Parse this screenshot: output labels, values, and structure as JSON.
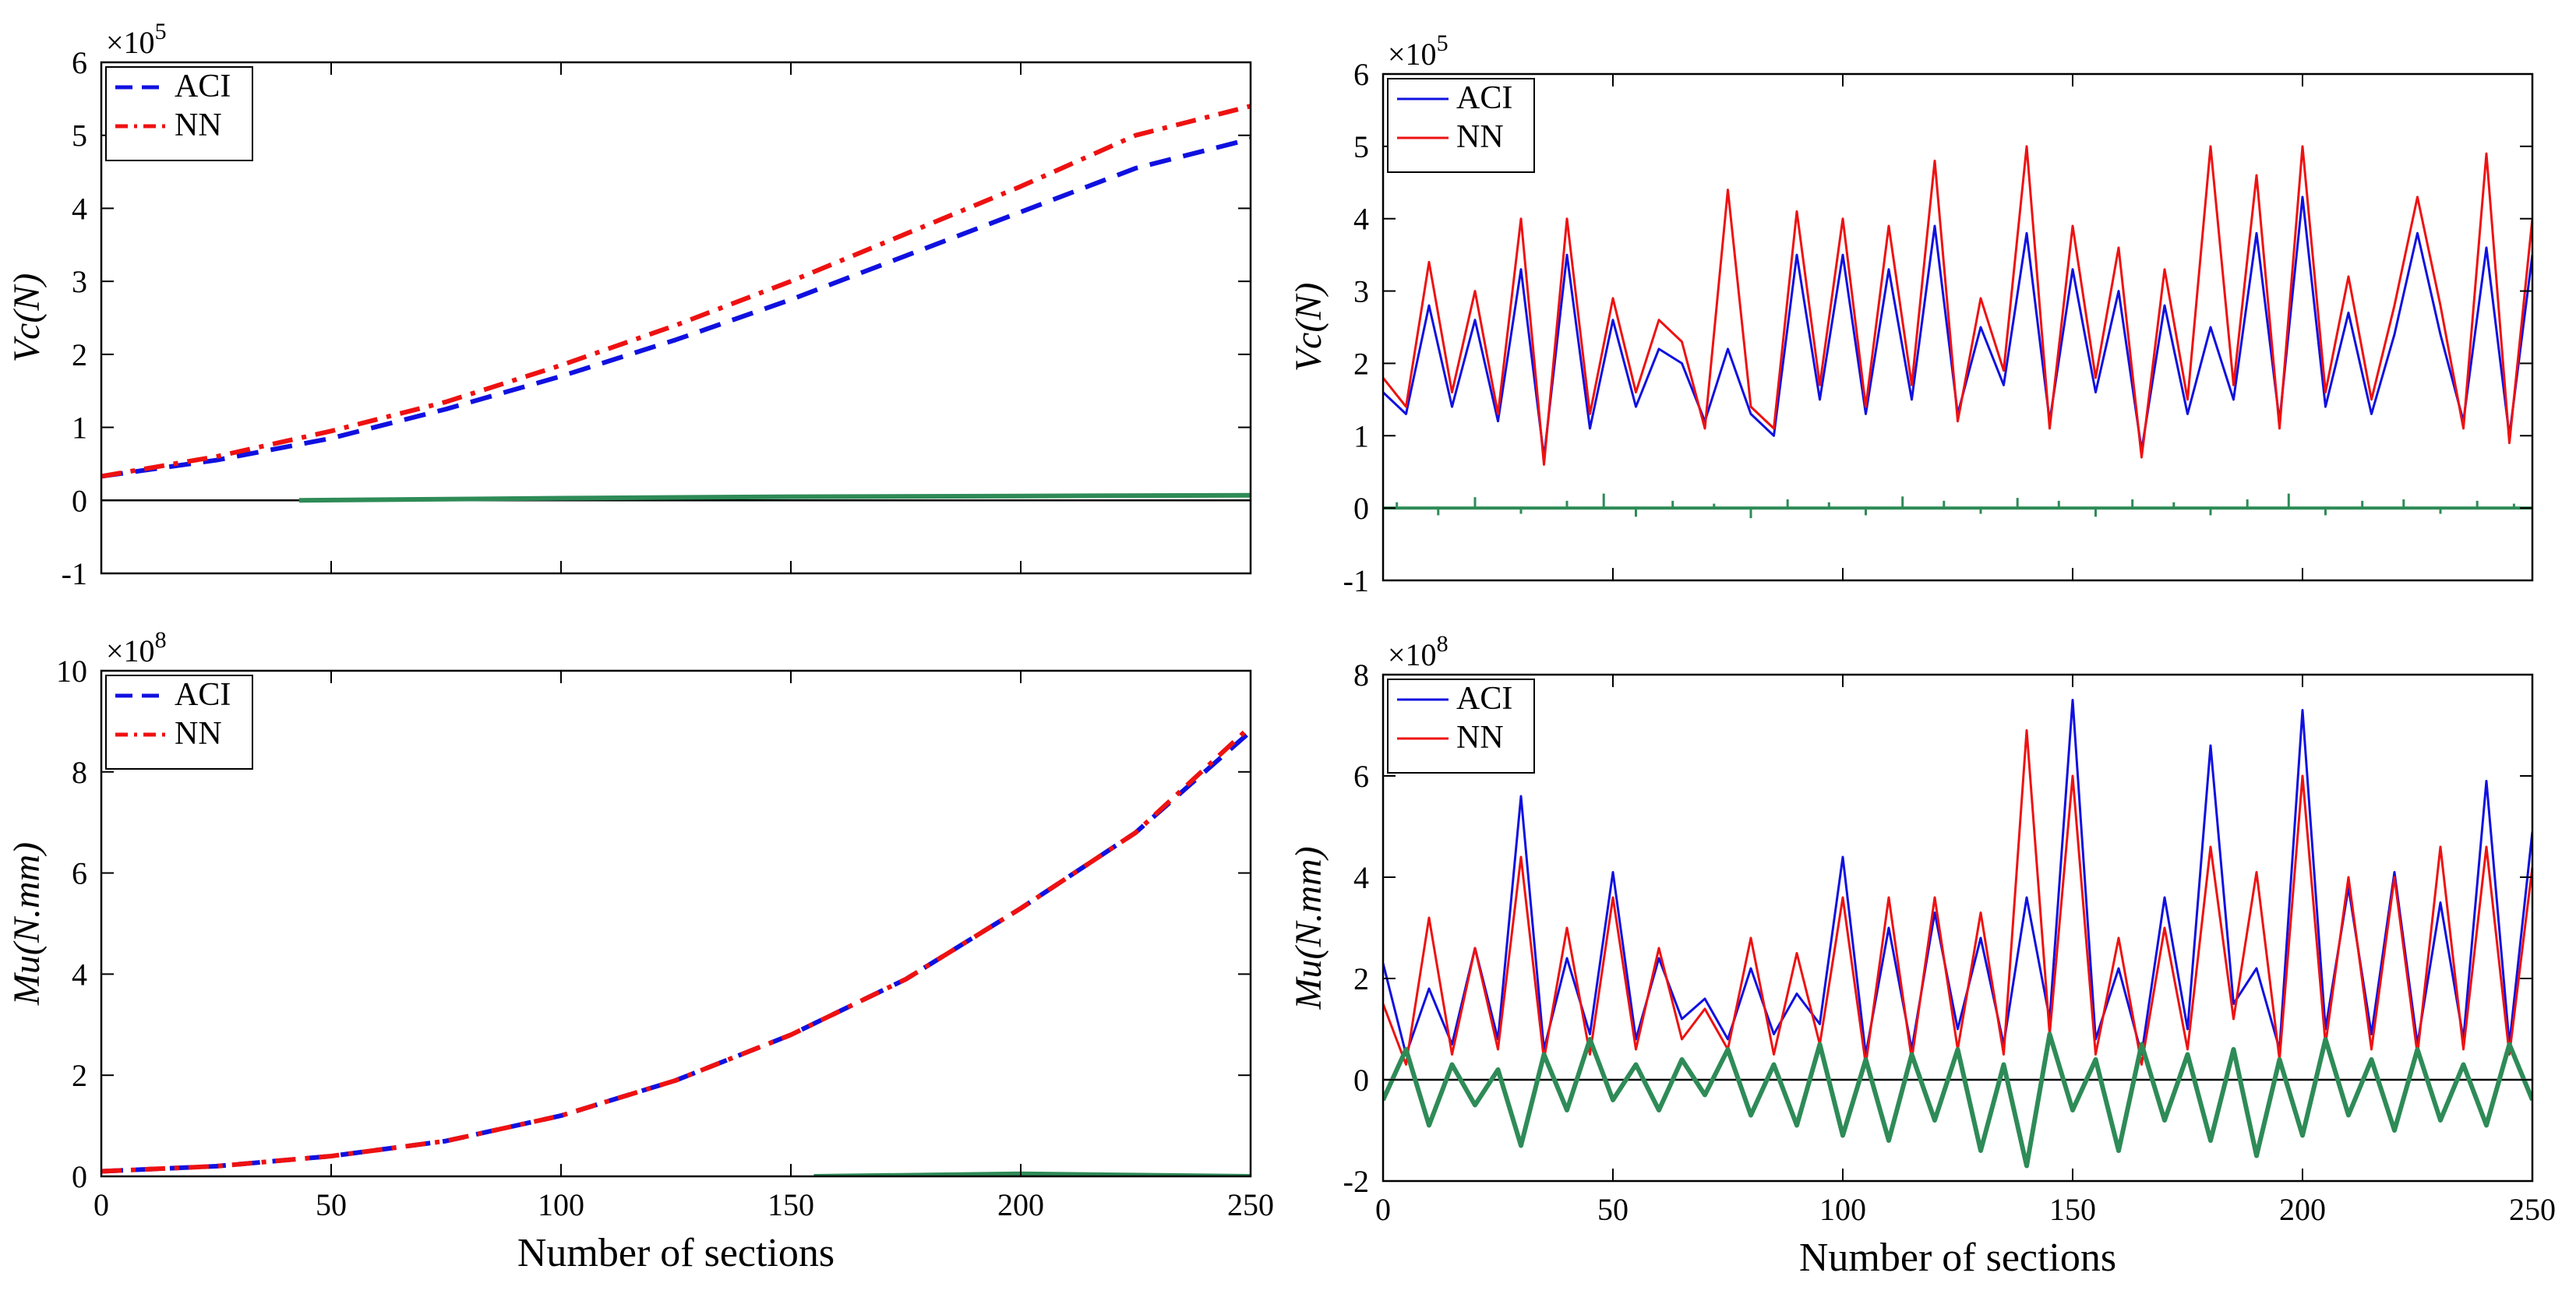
{
  "chart_data": [
    {
      "id": "vc-sorted",
      "type": "line",
      "xlabel": "",
      "ylabel": "Vc(N)",
      "exponent": "×10^5",
      "xlim": [
        0,
        250
      ],
      "ylim": [
        -1,
        6
      ],
      "xticks": [
        0,
        50,
        100,
        150,
        200,
        250
      ],
      "yticks": [
        -1,
        0,
        1,
        2,
        3,
        4,
        5,
        6
      ],
      "show_xtick_labels": false,
      "legend": "top-left",
      "series": [
        {
          "name": "ACI",
          "style": "dashed",
          "color": "#1010e0",
          "x": [
            0,
            25,
            50,
            75,
            100,
            125,
            150,
            175,
            200,
            225,
            250
          ],
          "values": [
            0.33,
            0.55,
            0.85,
            1.25,
            1.7,
            2.2,
            2.75,
            3.35,
            3.95,
            4.55,
            4.95
          ]
        },
        {
          "name": "NN",
          "style": "dashdot",
          "color": "#ee1111",
          "x": [
            0,
            25,
            50,
            75,
            100,
            125,
            150,
            175,
            200,
            225,
            250
          ],
          "values": [
            0.33,
            0.6,
            0.95,
            1.35,
            1.85,
            2.4,
            3.0,
            3.65,
            4.3,
            5.0,
            5.4
          ]
        },
        {
          "name": "Error",
          "style": "solid",
          "color": "#2e8b57",
          "legend": false,
          "x": [
            43,
            100,
            150,
            200,
            250
          ],
          "values": [
            0.0,
            0.03,
            0.05,
            0.06,
            0.07
          ]
        }
      ]
    },
    {
      "id": "vc-random",
      "type": "line",
      "xlabel": "",
      "ylabel": "Vc(N)",
      "exponent": "×10^5",
      "xlim": [
        0,
        250
      ],
      "ylim": [
        -1,
        6
      ],
      "xticks": [
        0,
        50,
        100,
        150,
        200,
        250
      ],
      "yticks": [
        -1,
        0,
        1,
        2,
        3,
        4,
        5,
        6
      ],
      "show_xtick_labels": false,
      "legend": "top-left",
      "series": [
        {
          "name": "ACI",
          "style": "solid",
          "color": "#1010e0",
          "x": [
            0,
            5,
            10,
            15,
            20,
            25,
            30,
            35,
            40,
            45,
            50,
            55,
            60,
            65,
            70,
            75,
            80,
            85,
            90,
            95,
            100,
            105,
            110,
            115,
            120,
            125,
            130,
            135,
            140,
            145,
            150,
            155,
            160,
            165,
            170,
            175,
            180,
            185,
            190,
            195,
            200,
            205,
            210,
            215,
            220,
            225,
            230,
            235,
            240,
            245,
            250
          ],
          "values": [
            1.6,
            1.3,
            2.8,
            1.4,
            2.6,
            1.2,
            3.3,
            0.7,
            3.5,
            1.1,
            2.6,
            1.4,
            2.2,
            2.0,
            1.2,
            2.2,
            1.3,
            1.0,
            3.5,
            1.5,
            3.5,
            1.3,
            3.3,
            1.5,
            3.9,
            1.3,
            2.5,
            1.7,
            3.8,
            1.2,
            3.3,
            1.6,
            3.0,
            0.8,
            2.8,
            1.3,
            2.5,
            1.5,
            3.8,
            1.2,
            4.3,
            1.4,
            2.7,
            1.3,
            2.4,
            3.8,
            2.4,
            1.2,
            3.6,
            1.0,
            3.5
          ]
        },
        {
          "name": "NN",
          "style": "solid",
          "color": "#ee1111",
          "x": [
            0,
            5,
            10,
            15,
            20,
            25,
            30,
            35,
            40,
            45,
            50,
            55,
            60,
            65,
            70,
            75,
            80,
            85,
            90,
            95,
            100,
            105,
            110,
            115,
            120,
            125,
            130,
            135,
            140,
            145,
            150,
            155,
            160,
            165,
            170,
            175,
            180,
            185,
            190,
            195,
            200,
            205,
            210,
            215,
            220,
            225,
            230,
            235,
            240,
            245,
            250
          ],
          "values": [
            1.8,
            1.4,
            3.4,
            1.6,
            3.0,
            1.3,
            4.0,
            0.6,
            4.0,
            1.3,
            2.9,
            1.6,
            2.6,
            2.3,
            1.1,
            4.4,
            1.4,
            1.1,
            4.1,
            1.7,
            4.0,
            1.4,
            3.9,
            1.7,
            4.8,
            1.2,
            2.9,
            1.9,
            5.0,
            1.1,
            3.9,
            1.8,
            3.6,
            0.7,
            3.3,
            1.5,
            5.0,
            1.7,
            4.6,
            1.1,
            5.0,
            1.6,
            3.2,
            1.5,
            2.8,
            4.3,
            2.8,
            1.1,
            4.9,
            0.9,
            4.0
          ]
        },
        {
          "name": "Error",
          "style": "spikes",
          "color": "#2e8b57",
          "legend": false,
          "x": [
            3,
            12,
            20,
            30,
            40,
            48,
            55,
            63,
            72,
            80,
            88,
            97,
            105,
            113,
            122,
            130,
            138,
            147,
            155,
            163,
            172,
            180,
            188,
            197,
            205,
            213,
            222,
            230,
            238,
            246
          ],
          "values": [
            0.08,
            -0.1,
            0.15,
            -0.08,
            0.1,
            0.2,
            -0.12,
            0.1,
            0.06,
            -0.14,
            0.12,
            0.08,
            -0.1,
            0.16,
            0.1,
            -0.08,
            0.14,
            0.1,
            -0.12,
            0.12,
            0.08,
            -0.1,
            0.12,
            0.2,
            -0.1,
            0.1,
            0.12,
            -0.08,
            0.1,
            0.06
          ]
        }
      ]
    },
    {
      "id": "mu-sorted",
      "type": "line",
      "xlabel": "Number of sections",
      "ylabel": "Mu(N.mm)",
      "exponent": "×10^8",
      "xlim": [
        0,
        250
      ],
      "ylim": [
        0,
        10
      ],
      "xticks": [
        0,
        50,
        100,
        150,
        200,
        250
      ],
      "yticks": [
        0,
        2,
        4,
        6,
        8,
        10
      ],
      "show_xtick_labels": true,
      "legend": "top-left",
      "series": [
        {
          "name": "ACI",
          "style": "dashed",
          "color": "#1010e0",
          "x": [
            0,
            25,
            50,
            75,
            100,
            125,
            150,
            175,
            200,
            225,
            250
          ],
          "values": [
            0.1,
            0.2,
            0.4,
            0.7,
            1.2,
            1.9,
            2.8,
            3.9,
            5.3,
            6.8,
            8.8
          ]
        },
        {
          "name": "NN",
          "style": "dashdot",
          "color": "#ee1111",
          "x": [
            0,
            25,
            50,
            75,
            100,
            125,
            150,
            175,
            200,
            225,
            250
          ],
          "values": [
            0.1,
            0.2,
            0.4,
            0.7,
            1.2,
            1.9,
            2.8,
            3.9,
            5.3,
            6.8,
            8.9
          ]
        },
        {
          "name": "Error",
          "style": "solid",
          "color": "#2e8b57",
          "legend": false,
          "x": [
            155,
            200,
            250
          ],
          "values": [
            0.0,
            0.05,
            0.0
          ]
        }
      ]
    },
    {
      "id": "mu-random",
      "type": "line",
      "xlabel": "Number of sections",
      "ylabel": "Mu(N.mm)",
      "exponent": "×10^8",
      "xlim": [
        0,
        250
      ],
      "ylim": [
        -2,
        8
      ],
      "xticks": [
        0,
        50,
        100,
        150,
        200,
        250
      ],
      "yticks": [
        -2,
        0,
        2,
        4,
        6,
        8
      ],
      "show_xtick_labels": true,
      "legend": "top-left",
      "series": [
        {
          "name": "ACI",
          "style": "solid",
          "color": "#1010e0",
          "x": [
            0,
            5,
            10,
            15,
            20,
            25,
            30,
            35,
            40,
            45,
            50,
            55,
            60,
            65,
            70,
            75,
            80,
            85,
            90,
            95,
            100,
            105,
            110,
            115,
            120,
            125,
            130,
            135,
            140,
            145,
            150,
            155,
            160,
            165,
            170,
            175,
            180,
            185,
            190,
            195,
            200,
            205,
            210,
            215,
            220,
            225,
            230,
            235,
            240,
            245,
            250
          ],
          "values": [
            2.3,
            0.5,
            1.8,
            0.7,
            2.6,
            0.8,
            5.6,
            0.6,
            2.4,
            0.9,
            4.1,
            0.8,
            2.4,
            1.2,
            1.6,
            0.8,
            2.2,
            0.9,
            1.7,
            1.1,
            4.4,
            0.5,
            3.0,
            0.6,
            3.3,
            1.0,
            2.8,
            0.7,
            3.6,
            1.2,
            7.5,
            0.8,
            2.2,
            0.5,
            3.6,
            1.0,
            6.6,
            1.5,
            2.2,
            0.6,
            7.3,
            1.0,
            3.8,
            0.9,
            4.1,
            0.7,
            3.5,
            0.8,
            5.9,
            0.7,
            4.9
          ]
        },
        {
          "name": "NN",
          "style": "solid",
          "color": "#ee1111",
          "x": [
            0,
            5,
            10,
            15,
            20,
            25,
            30,
            35,
            40,
            45,
            50,
            55,
            60,
            65,
            70,
            75,
            80,
            85,
            90,
            95,
            100,
            105,
            110,
            115,
            120,
            125,
            130,
            135,
            140,
            145,
            150,
            155,
            160,
            165,
            170,
            175,
            180,
            185,
            190,
            195,
            200,
            205,
            210,
            215,
            220,
            225,
            230,
            235,
            240,
            245,
            250
          ],
          "values": [
            1.5,
            0.3,
            3.2,
            0.5,
            2.6,
            0.6,
            4.4,
            0.4,
            3.0,
            0.5,
            3.6,
            0.6,
            2.6,
            0.8,
            1.4,
            0.6,
            2.8,
            0.5,
            2.5,
            0.7,
            3.6,
            0.3,
            3.6,
            0.4,
            3.6,
            0.6,
            3.3,
            0.5,
            6.9,
            0.9,
            6.0,
            0.5,
            2.8,
            0.3,
            3.0,
            0.6,
            4.6,
            1.2,
            4.1,
            0.4,
            6.0,
            0.7,
            4.0,
            0.6,
            4.0,
            0.5,
            4.6,
            0.6,
            4.6,
            0.5,
            4.2
          ]
        },
        {
          "name": "Error",
          "style": "solid-thick",
          "color": "#2e8b57",
          "legend": false,
          "x": [
            0,
            5,
            10,
            15,
            20,
            25,
            30,
            35,
            40,
            45,
            50,
            55,
            60,
            65,
            70,
            75,
            80,
            85,
            90,
            95,
            100,
            105,
            110,
            115,
            120,
            125,
            130,
            135,
            140,
            145,
            150,
            155,
            160,
            165,
            170,
            175,
            180,
            185,
            190,
            195,
            200,
            205,
            210,
            215,
            220,
            225,
            230,
            235,
            240,
            245,
            250
          ],
          "values": [
            -0.4,
            0.6,
            -0.9,
            0.3,
            -0.5,
            0.2,
            -1.3,
            0.5,
            -0.6,
            0.8,
            -0.4,
            0.3,
            -0.6,
            0.4,
            -0.3,
            0.6,
            -0.7,
            0.3,
            -0.9,
            0.7,
            -1.1,
            0.4,
            -1.2,
            0.5,
            -0.8,
            0.6,
            -1.4,
            0.3,
            -1.7,
            0.9,
            -0.6,
            0.4,
            -1.4,
            0.7,
            -0.8,
            0.5,
            -1.2,
            0.6,
            -1.5,
            0.4,
            -1.1,
            0.8,
            -0.7,
            0.4,
            -1.0,
            0.6,
            -0.8,
            0.3,
            -0.9,
            0.7,
            -0.4
          ]
        }
      ]
    }
  ]
}
